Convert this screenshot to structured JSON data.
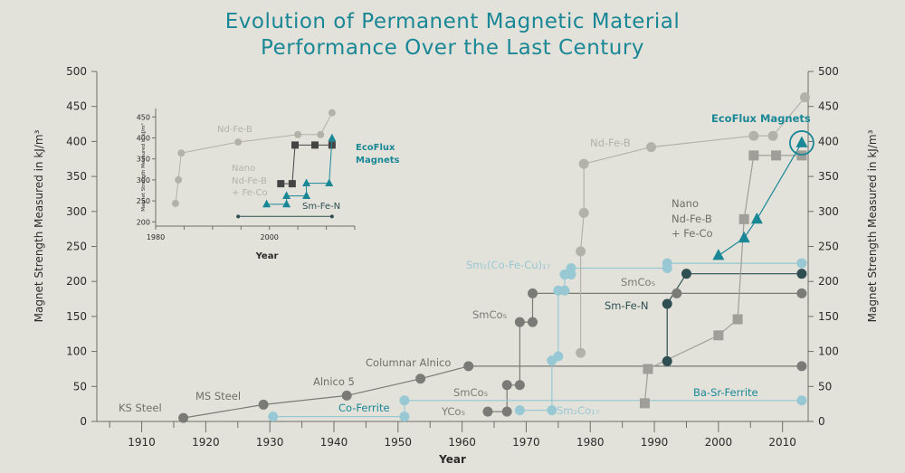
{
  "title_line1": "Evolution of Permanent Magnetic Material",
  "title_line2": "Performance Over the Last Century",
  "colors": {
    "background": "#e3e2da",
    "nd_fe_b": "#b3b2aa",
    "smco_dark": "#7a7a77",
    "smco_light": "#98c8d4",
    "teal": "#1a8796",
    "dark_teal": "#2f4e52",
    "steel": "#6e6e6a",
    "dark_square": "#444444",
    "nano_square": "#9f9e98"
  },
  "chart_data": {
    "type": "scatter",
    "xlabel": "Year",
    "ylabel_left": "Magnet Strength Measured in kJ/m³",
    "ylabel_right": "Magnet Strength Measured in kJ/m³",
    "xlim": [
      1903,
      2014
    ],
    "ylim": [
      0,
      500
    ],
    "xticks": [
      1910,
      1920,
      1930,
      1940,
      1950,
      1960,
      1970,
      1980,
      1990,
      2000,
      2010
    ],
    "yticks": [
      0,
      50,
      100,
      150,
      200,
      250,
      300,
      350,
      400,
      450,
      500
    ],
    "series": [
      {
        "color": "#7a7a77",
        "marker": "circle",
        "points": [
          [
            1916.5,
            5
          ],
          [
            1929,
            24
          ],
          [
            1942,
            37
          ],
          [
            1953.5,
            61
          ],
          [
            1961,
            79
          ],
          [
            2013,
            79
          ]
        ]
      },
      {
        "color": "#7a7a77",
        "marker": "circle",
        "points": [
          [
            1964,
            14
          ],
          [
            1967,
            14
          ],
          [
            1967,
            52
          ],
          [
            1969,
            52
          ],
          [
            1969,
            142
          ],
          [
            1971,
            142
          ],
          [
            1971,
            183
          ],
          [
            1993.5,
            183
          ],
          [
            2013,
            183
          ]
        ]
      },
      {
        "color": "#98c8d4",
        "marker": "circle",
        "points": [
          [
            1930.5,
            7
          ],
          [
            1951,
            7
          ],
          [
            1951,
            30
          ],
          [
            2013,
            30
          ]
        ]
      },
      {
        "color": "#98c8d4",
        "marker": "circle",
        "points": [
          [
            1969,
            16
          ],
          [
            1974,
            16
          ],
          [
            1974,
            87
          ],
          [
            1975,
            93
          ],
          [
            1975,
            187
          ],
          [
            1976,
            187
          ],
          [
            1976,
            210
          ],
          [
            1977,
            210
          ],
          [
            1977,
            219
          ],
          [
            1992,
            219
          ],
          [
            1992,
            226
          ],
          [
            2013,
            226
          ]
        ]
      },
      {
        "color": "#b3b2aa",
        "marker": "circle",
        "points": [
          [
            1978.5,
            98
          ],
          [
            1978.5,
            243
          ],
          [
            1979,
            298
          ],
          [
            1979,
            368
          ],
          [
            1989.5,
            392
          ],
          [
            2005.5,
            408
          ],
          [
            2008.5,
            408
          ],
          [
            2013.5,
            463
          ]
        ]
      },
      {
        "color": "#2f4e52",
        "marker": "circle",
        "points": [
          [
            1992,
            86
          ],
          [
            1992,
            168
          ],
          [
            1995,
            211
          ],
          [
            2013,
            211
          ]
        ]
      },
      {
        "color": "#9f9e98",
        "marker": "square",
        "points": [
          [
            1988.5,
            26
          ],
          [
            1989,
            75
          ],
          [
            2000,
            123
          ],
          [
            2003,
            146
          ],
          [
            2004,
            289
          ],
          [
            2005.5,
            380
          ],
          [
            2009,
            380
          ],
          [
            2013,
            380
          ]
        ]
      },
      {
        "color": "#1a8796",
        "marker": "triangle",
        "points": [
          [
            2000,
            237
          ],
          [
            2004,
            262
          ],
          [
            2006,
            289
          ],
          [
            2013,
            398
          ]
        ]
      }
    ],
    "annotations": [
      "KS Steel",
      "MS Steel",
      "Alnico 5",
      "Columnar Alnico",
      "Co-Ferrite",
      "SmCo₅",
      "YCo₅",
      "SmCo₅",
      "Sm₂Co₁₇",
      "Sm₂(Co-Fe-Cu)₁₇",
      "SmCo₅",
      "Sm-Fe-N",
      "Nd-Fe-B",
      "Nano",
      "Nd-Fe-B",
      "+ Fe-Co",
      "Ba-Sr-Ferrite",
      "EcoFlux Magnets"
    ]
  },
  "inset_chart": {
    "type": "scatter",
    "xlabel": "Year",
    "ylabel": "Magnet Strength Measured in kJ/m³",
    "xlim": [
      1980,
      2015
    ],
    "ylim": [
      190,
      470
    ],
    "xticks": [
      1980,
      2000
    ],
    "yticks": [
      200,
      250,
      300,
      350,
      400,
      450
    ],
    "series": [
      {
        "color": "#b3b2aa",
        "marker": "circle",
        "points": [
          [
            1983.5,
            244
          ],
          [
            1984,
            300
          ],
          [
            1984.5,
            364
          ],
          [
            1994.5,
            390
          ],
          [
            2005,
            408
          ],
          [
            2009,
            408
          ],
          [
            2011,
            460
          ]
        ]
      },
      {
        "color": "#444444",
        "marker": "square",
        "points": [
          [
            2002,
            291
          ],
          [
            2004,
            291
          ],
          [
            2004.5,
            383
          ],
          [
            2008,
            383
          ],
          [
            2011,
            383
          ]
        ]
      },
      {
        "color": "#1a8796",
        "marker": "triangle",
        "points": [
          [
            1999.5,
            242
          ],
          [
            2003,
            242
          ],
          [
            2003,
            262
          ],
          [
            2006.5,
            262
          ],
          [
            2006.5,
            292
          ],
          [
            2010.5,
            292
          ],
          [
            2011,
            399
          ]
        ]
      },
      {
        "color": "#2f4e52",
        "marker": "dot",
        "points": [
          [
            1994.5,
            213
          ],
          [
            2011,
            213
          ]
        ]
      }
    ],
    "annotations": [
      "Nd-Fe-B",
      "Nano",
      "Nd-Fe-B",
      "+ Fe-Co",
      "EcoFlux",
      "Magnets",
      "Sm-Fe-N"
    ]
  }
}
